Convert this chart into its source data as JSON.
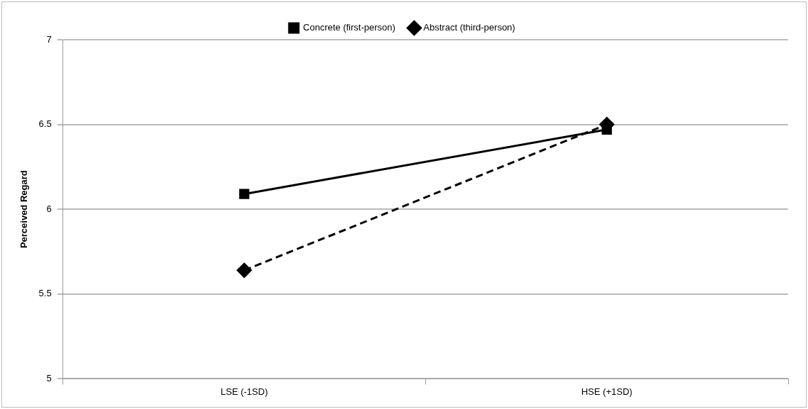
{
  "chart_data": {
    "type": "line",
    "ylabel": "Perceived Regard",
    "categories": [
      "LSE (-1SD)",
      "HSE (+1SD)"
    ],
    "series": [
      {
        "name": "Concrete (first-person)",
        "color": "#000000",
        "values": [
          6.09,
          6.47
        ],
        "marker": "square",
        "line_style": "solid"
      },
      {
        "name": "Abstract (third-person)",
        "color": "#000000",
        "values": [
          5.64,
          6.5
        ],
        "marker": "diamond",
        "line_style": "dashed"
      }
    ],
    "ylim": [
      5,
      7
    ],
    "yticks": [
      5,
      5.5,
      6,
      6.5,
      7
    ],
    "grid": "y",
    "legend": "top"
  }
}
